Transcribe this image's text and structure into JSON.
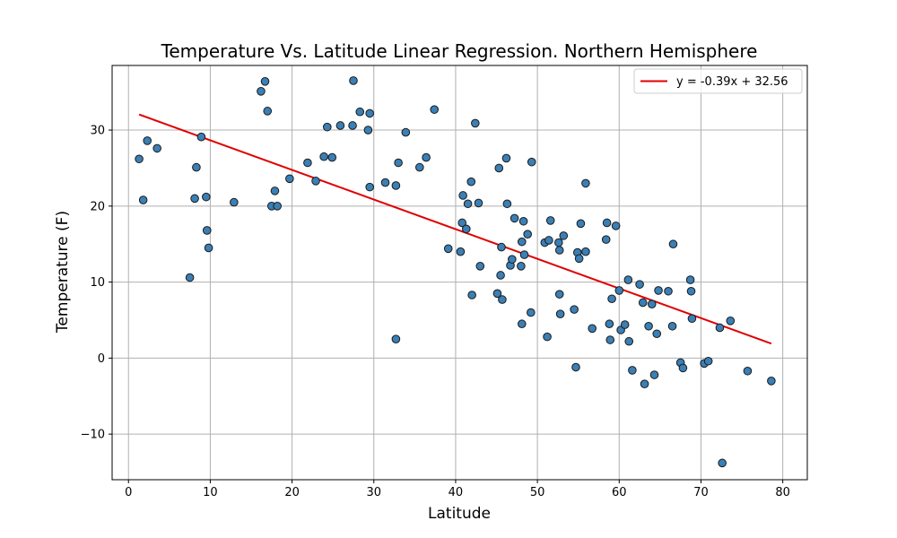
{
  "chart_data": {
    "type": "scatter",
    "title": "Temperature Vs. Latitude Linear Regression. Northern Hemisphere",
    "xlabel": "Latitude",
    "ylabel": "Temperature (F)",
    "xlim": [
      -2,
      83
    ],
    "ylim": [
      -16,
      38.5
    ],
    "xticks": [
      0,
      10,
      20,
      30,
      40,
      50,
      60,
      70,
      80
    ],
    "yticks": [
      -10,
      0,
      10,
      20,
      30
    ],
    "grid": true,
    "legend_position": "top-right",
    "colors": {
      "points": "#3a7fb5",
      "point_edge": "#1a1a1a",
      "regression": "#e00000"
    },
    "series": [
      {
        "points": [
          [
            1.3,
            26.2
          ],
          [
            1.8,
            20.8
          ],
          [
            2.3,
            28.6
          ],
          [
            3.5,
            27.6
          ],
          [
            7.5,
            10.6
          ],
          [
            8.1,
            21.0
          ],
          [
            8.3,
            25.1
          ],
          [
            8.9,
            29.1
          ],
          [
            9.5,
            21.2
          ],
          [
            9.6,
            16.8
          ],
          [
            9.8,
            14.5
          ],
          [
            12.9,
            20.5
          ],
          [
            16.2,
            35.1
          ],
          [
            16.7,
            36.4
          ],
          [
            17.0,
            32.5
          ],
          [
            17.5,
            20.0
          ],
          [
            17.9,
            22.0
          ],
          [
            18.2,
            20.0
          ],
          [
            19.7,
            23.6
          ],
          [
            21.9,
            25.7
          ],
          [
            22.9,
            23.3
          ],
          [
            23.9,
            26.5
          ],
          [
            24.3,
            30.4
          ],
          [
            24.9,
            26.4
          ],
          [
            25.9,
            30.6
          ],
          [
            27.4,
            30.6
          ],
          [
            27.5,
            36.5
          ],
          [
            28.3,
            32.4
          ],
          [
            29.3,
            30.0
          ],
          [
            29.5,
            32.2
          ],
          [
            29.5,
            22.5
          ],
          [
            31.4,
            23.1
          ],
          [
            32.7,
            22.7
          ],
          [
            32.7,
            2.5
          ],
          [
            33.0,
            25.7
          ],
          [
            33.9,
            29.7
          ],
          [
            35.6,
            25.1
          ],
          [
            36.4,
            26.4
          ],
          [
            37.4,
            32.7
          ],
          [
            39.1,
            14.4
          ],
          [
            40.6,
            14.0
          ],
          [
            40.8,
            17.8
          ],
          [
            40.9,
            21.4
          ],
          [
            41.3,
            17.0
          ],
          [
            41.5,
            20.3
          ],
          [
            41.9,
            23.2
          ],
          [
            42.0,
            8.3
          ],
          [
            42.4,
            30.9
          ],
          [
            42.8,
            20.4
          ],
          [
            43.0,
            12.1
          ],
          [
            45.1,
            8.5
          ],
          [
            45.3,
            25.0
          ],
          [
            45.5,
            10.9
          ],
          [
            45.6,
            14.6
          ],
          [
            45.7,
            7.7
          ],
          [
            46.2,
            26.3
          ],
          [
            46.3,
            20.3
          ],
          [
            46.7,
            12.2
          ],
          [
            46.9,
            13.0
          ],
          [
            47.2,
            18.4
          ],
          [
            48.0,
            12.1
          ],
          [
            48.1,
            4.5
          ],
          [
            48.1,
            15.3
          ],
          [
            48.3,
            18.0
          ],
          [
            48.4,
            13.6
          ],
          [
            48.8,
            16.3
          ],
          [
            49.2,
            6.0
          ],
          [
            49.3,
            25.8
          ],
          [
            50.9,
            15.2
          ],
          [
            51.2,
            2.8
          ],
          [
            51.4,
            15.5
          ],
          [
            51.6,
            18.1
          ],
          [
            52.6,
            15.2
          ],
          [
            52.7,
            14.2
          ],
          [
            52.7,
            8.4
          ],
          [
            52.8,
            5.8
          ],
          [
            53.2,
            16.1
          ],
          [
            54.5,
            6.4
          ],
          [
            54.7,
            -1.2
          ],
          [
            54.9,
            13.9
          ],
          [
            55.1,
            13.1
          ],
          [
            55.3,
            17.7
          ],
          [
            55.9,
            14.0
          ],
          [
            55.9,
            23.0
          ],
          [
            56.7,
            3.9
          ],
          [
            58.4,
            15.6
          ],
          [
            58.5,
            17.8
          ],
          [
            58.8,
            4.5
          ],
          [
            58.9,
            2.4
          ],
          [
            59.1,
            7.8
          ],
          [
            59.6,
            17.4
          ],
          [
            60.0,
            8.9
          ],
          [
            60.2,
            3.7
          ],
          [
            60.7,
            4.4
          ],
          [
            61.1,
            10.3
          ],
          [
            61.2,
            2.2
          ],
          [
            61.6,
            -1.6
          ],
          [
            62.5,
            9.7
          ],
          [
            62.9,
            7.3
          ],
          [
            63.1,
            -3.4
          ],
          [
            63.6,
            4.2
          ],
          [
            64.0,
            7.1
          ],
          [
            64.3,
            -2.2
          ],
          [
            64.6,
            3.2
          ],
          [
            64.8,
            8.9
          ],
          [
            66.0,
            8.8
          ],
          [
            66.5,
            4.2
          ],
          [
            66.6,
            15.0
          ],
          [
            67.5,
            -0.6
          ],
          [
            67.8,
            -1.3
          ],
          [
            68.7,
            10.3
          ],
          [
            68.8,
            8.8
          ],
          [
            68.9,
            5.2
          ],
          [
            70.4,
            -0.7
          ],
          [
            70.9,
            -0.4
          ],
          [
            72.3,
            4.0
          ],
          [
            72.6,
            -13.8
          ],
          [
            73.6,
            4.9
          ],
          [
            75.7,
            -1.7
          ],
          [
            78.6,
            -3.0
          ]
        ]
      }
    ],
    "regression": {
      "label": "y = -0.39x + 32.56",
      "slope": -0.39,
      "intercept": 32.56,
      "x_range": [
        1.3,
        78.6
      ]
    }
  }
}
